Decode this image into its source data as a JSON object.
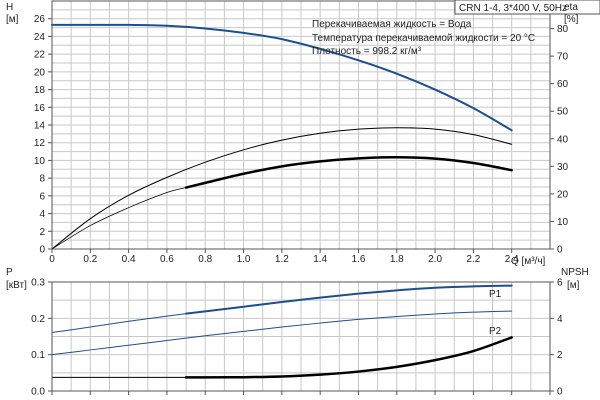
{
  "header": {
    "title": "CRN 1-4, 3*400 V, 50Hz",
    "info_lines": [
      "Перекачиваемая жидкость = Вода",
      "Температура перекачиваемой жидкости = 20 °C",
      "Плотность = 998.2 кг/м³"
    ]
  },
  "colors": {
    "blue": "#1c4f8f",
    "black": "#000000",
    "grid": "#c8c8c8"
  },
  "chart_data": [
    {
      "type": "line",
      "name": "head-efficiency",
      "xlim": [
        0,
        2.6
      ],
      "x_ticks": [
        "0",
        "0.2",
        "0.4",
        "0.6",
        "0.8",
        "1.0",
        "1.2",
        "1.4",
        "1.6",
        "1.8",
        "2.0",
        "2.2",
        "2.4"
      ],
      "x_unit": "Q [м³/ч]",
      "y_left": {
        "label": "H",
        "unit": "[м]",
        "lim": [
          0,
          28
        ],
        "ticks": [
          "0",
          "2",
          "4",
          "6",
          "8",
          "10",
          "12",
          "14",
          "16",
          "18",
          "20",
          "22",
          "24",
          "26"
        ]
      },
      "y_right": {
        "label": "eta",
        "unit": "[%]",
        "lim": [
          0,
          90
        ],
        "ticks": [
          "0",
          "10",
          "20",
          "30",
          "40",
          "50",
          "60",
          "70",
          "80"
        ]
      },
      "grid": true,
      "series": [
        {
          "axis": "left",
          "color": "blue",
          "width": 2,
          "dash": "",
          "x": [
            0,
            0.2,
            0.4,
            0.6,
            0.8,
            1.0,
            1.2,
            1.4,
            1.6,
            1.8,
            2.0,
            2.2,
            2.4
          ],
          "y": [
            25.3,
            25.3,
            25.3,
            25.2,
            24.9,
            24.4,
            23.7,
            22.6,
            21.3,
            19.8,
            18.0,
            15.9,
            13.4
          ]
        },
        {
          "axis": "right",
          "color": "black",
          "width": 1,
          "dash": "",
          "x": [
            0,
            0.2,
            0.4,
            0.6,
            0.8,
            1.0,
            1.2,
            1.4,
            1.6,
            1.8,
            2.0,
            2.2,
            2.4
          ],
          "y": [
            0,
            11,
            19.5,
            26,
            31.5,
            36,
            39.5,
            42,
            43.5,
            44,
            43.5,
            41.5,
            38
          ]
        },
        {
          "axis": "right",
          "color": "black",
          "width": 0.7,
          "dash": "",
          "x": [
            0,
            0.2,
            0.4,
            0.6,
            0.7
          ],
          "y": [
            0,
            8.5,
            15,
            20.5,
            22.3
          ]
        },
        {
          "axis": "right",
          "color": "black",
          "width": 2.5,
          "dash": "",
          "x": [
            0.7,
            0.8,
            1.0,
            1.2,
            1.4,
            1.6,
            1.8,
            2.0,
            2.2,
            2.4
          ],
          "y": [
            22.3,
            24,
            27.3,
            30,
            31.8,
            32.9,
            33.3,
            32.8,
            31.2,
            28.6
          ]
        }
      ]
    },
    {
      "type": "line",
      "name": "power-npsh",
      "xlim": [
        0,
        2.6
      ],
      "y_left": {
        "label": "P",
        "unit": "[кВт]",
        "lim": [
          0,
          0.3
        ],
        "ticks": [
          "0.0",
          "0.1",
          "0.2",
          "0.3"
        ]
      },
      "y_right": {
        "label": "NPSH",
        "unit": "[м]",
        "lim": [
          0,
          6
        ],
        "ticks": [
          "0",
          "2",
          "4",
          "6"
        ]
      },
      "grid": true,
      "series": [
        {
          "name": "P1",
          "axis": "left",
          "color": "blue",
          "width": 1,
          "dash": "",
          "x": [
            0,
            0.2,
            0.4,
            0.6,
            0.7
          ],
          "y": [
            0.161,
            0.176,
            0.192,
            0.206,
            0.213
          ]
        },
        {
          "name": "P1",
          "axis": "left",
          "color": "blue",
          "width": 2,
          "dash": "",
          "x": [
            0.7,
            0.8,
            1.0,
            1.2,
            1.4,
            1.6,
            1.8,
            2.0,
            2.2,
            2.4
          ],
          "y": [
            0.213,
            0.219,
            0.232,
            0.245,
            0.257,
            0.268,
            0.277,
            0.284,
            0.288,
            0.29
          ]
        },
        {
          "name": "P2",
          "axis": "left",
          "color": "blue",
          "width": 1,
          "dash": "",
          "x": [
            0,
            0.2,
            0.4,
            0.6,
            0.8,
            1.0,
            1.2,
            1.4,
            1.6,
            1.8,
            2.0,
            2.2,
            2.4
          ],
          "y": [
            0.1,
            0.113,
            0.126,
            0.139,
            0.152,
            0.164,
            0.176,
            0.187,
            0.197,
            0.205,
            0.212,
            0.217,
            0.22
          ]
        },
        {
          "axis": "right",
          "color": "black",
          "width": 1,
          "dash": "",
          "x": [
            0,
            0.2,
            0.4,
            0.6,
            0.7
          ],
          "y": [
            0.75,
            0.75,
            0.75,
            0.75,
            0.75
          ]
        },
        {
          "axis": "right",
          "color": "black",
          "width": 2.5,
          "dash": "",
          "x": [
            0.7,
            0.8,
            1.0,
            1.2,
            1.4,
            1.6,
            1.8,
            2.0,
            2.2,
            2.4
          ],
          "y": [
            0.75,
            0.75,
            0.76,
            0.8,
            0.9,
            1.07,
            1.33,
            1.7,
            2.2,
            2.95
          ]
        }
      ]
    }
  ]
}
